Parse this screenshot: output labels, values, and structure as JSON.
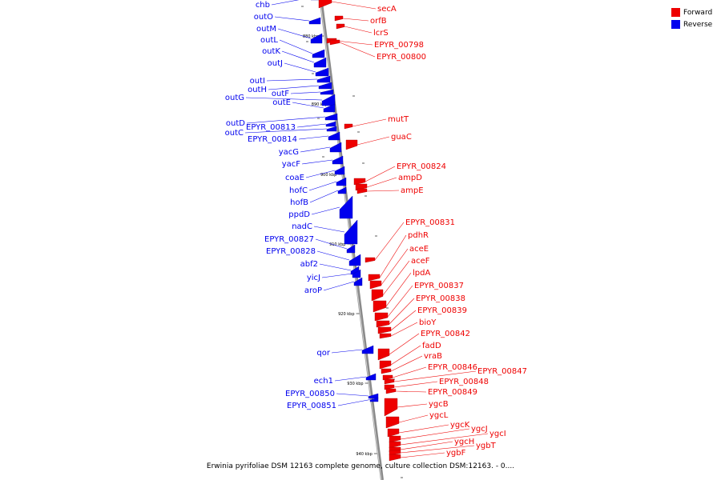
{
  "legend": [
    {
      "label": "Forward",
      "color": "#ee0000"
    },
    {
      "label": "Reverse",
      "color": "#0000ee"
    }
  ],
  "caption": "Erwinia pyrifoliae DSM 12163 complete genome, culture collection DSM:12163. - 0....",
  "ticks": [
    "880 kbp",
    "890 kbp",
    "900 kbp",
    "910 kbp",
    "920 kbp",
    "930 kbp",
    "940 kbp"
  ],
  "forward_genes": [
    "secA",
    "orfB",
    "lcrS",
    "EPYR_00798",
    "EPYR_00800",
    "mutT",
    "guaC",
    "EPYR_00824",
    "ampD",
    "ampE",
    "EPYR_00831",
    "pdhR",
    "aceE",
    "aceF",
    "lpdA",
    "EPYR_00837",
    "EPYR_00838",
    "EPYR_00839",
    "bioY",
    "EPYR_00842",
    "fadD",
    "vraB",
    "EPYR_00846",
    "EPYR_00847",
    "EPYR_00848",
    "EPYR_00849",
    "ygcB",
    "ygcL",
    "ygcK",
    "ygcJ",
    "ygcI",
    "ygcH",
    "ygbT",
    "ygbF"
  ],
  "reverse_genes": [
    "chb",
    "outO",
    "outM",
    "outL",
    "outK",
    "outJ",
    "outI",
    "outH",
    "outF",
    "outG",
    "outE",
    "outD",
    "EPYR_00813",
    "outC",
    "EPYR_00814",
    "yacG",
    "yacF",
    "coaE",
    "hofC",
    "hofB",
    "ppdD",
    "nadC",
    "EPYR_00827",
    "EPYR_00828",
    "abf2",
    "yicJ",
    "aroP",
    "qor",
    "ech1",
    "EPYR_00850",
    "EPYR_00851"
  ]
}
